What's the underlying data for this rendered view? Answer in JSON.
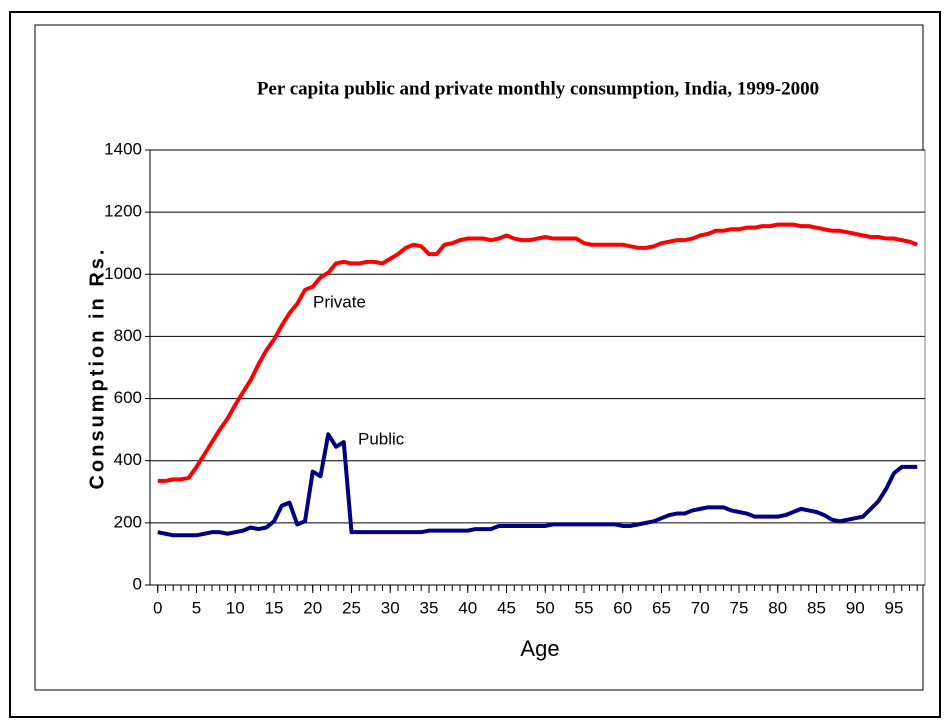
{
  "chart_data": {
    "type": "line",
    "title": "Per capita public and private monthly consumption, India, 1999-2000",
    "x_label": "Age",
    "y_label": "Consumption in Rs.",
    "x": [
      0,
      1,
      2,
      3,
      4,
      5,
      6,
      7,
      8,
      9,
      10,
      11,
      12,
      13,
      14,
      15,
      16,
      17,
      18,
      19,
      20,
      21,
      22,
      23,
      24,
      25,
      26,
      27,
      28,
      29,
      30,
      31,
      32,
      33,
      34,
      35,
      36,
      37,
      38,
      39,
      40,
      41,
      42,
      43,
      44,
      45,
      46,
      47,
      48,
      49,
      50,
      51,
      52,
      53,
      54,
      55,
      56,
      57,
      58,
      59,
      60,
      61,
      62,
      63,
      64,
      65,
      66,
      67,
      68,
      69,
      70,
      71,
      72,
      73,
      74,
      75,
      76,
      77,
      78,
      79,
      80,
      81,
      82,
      83,
      84,
      85,
      86,
      87,
      88,
      89,
      90,
      91,
      92,
      93,
      94,
      95,
      96,
      97,
      98
    ],
    "series": [
      {
        "name": "Private",
        "color": "#ff0000",
        "values": [
          335,
          335,
          340,
          340,
          345,
          380,
          420,
          460,
          500,
          535,
          580,
          620,
          660,
          710,
          755,
          790,
          835,
          875,
          905,
          950,
          960,
          990,
          1005,
          1035,
          1040,
          1035,
          1035,
          1040,
          1040,
          1035,
          1050,
          1065,
          1085,
          1095,
          1090,
          1065,
          1065,
          1095,
          1100,
          1110,
          1115,
          1115,
          1115,
          1110,
          1115,
          1125,
          1115,
          1110,
          1110,
          1115,
          1120,
          1115,
          1115,
          1115,
          1115,
          1100,
          1095,
          1095,
          1095,
          1095,
          1095,
          1090,
          1085,
          1085,
          1090,
          1100,
          1105,
          1110,
          1110,
          1115,
          1125,
          1130,
          1140,
          1140,
          1145,
          1145,
          1150,
          1150,
          1155,
          1155,
          1160,
          1160,
          1160,
          1155,
          1155,
          1150,
          1145,
          1140,
          1140,
          1135,
          1130,
          1125,
          1120,
          1120,
          1115,
          1115,
          1110,
          1105,
          1095
        ]
      },
      {
        "name": "Public",
        "color": "#000080",
        "values": [
          170,
          165,
          160,
          160,
          160,
          160,
          165,
          170,
          170,
          165,
          170,
          175,
          185,
          180,
          185,
          205,
          255,
          265,
          195,
          205,
          365,
          350,
          485,
          445,
          460,
          170,
          170,
          170,
          170,
          170,
          170,
          170,
          170,
          170,
          170,
          175,
          175,
          175,
          175,
          175,
          175,
          180,
          180,
          180,
          190,
          190,
          190,
          190,
          190,
          190,
          190,
          195,
          195,
          195,
          195,
          195,
          195,
          195,
          195,
          195,
          190,
          190,
          195,
          200,
          205,
          215,
          225,
          230,
          230,
          240,
          245,
          250,
          250,
          250,
          240,
          235,
          230,
          220,
          220,
          220,
          220,
          225,
          235,
          245,
          240,
          235,
          225,
          210,
          205,
          210,
          215,
          220,
          245,
          270,
          310,
          360,
          380,
          380,
          380
        ]
      }
    ],
    "xlim": [
      -1,
      99
    ],
    "xticks": [
      0,
      5,
      10,
      15,
      20,
      25,
      30,
      35,
      40,
      45,
      50,
      55,
      60,
      65,
      70,
      75,
      80,
      85,
      90,
      95
    ],
    "ylim": [
      0,
      1400
    ],
    "yticks": [
      0,
      200,
      400,
      600,
      800,
      1000,
      1200,
      1400
    ],
    "grid": true
  }
}
